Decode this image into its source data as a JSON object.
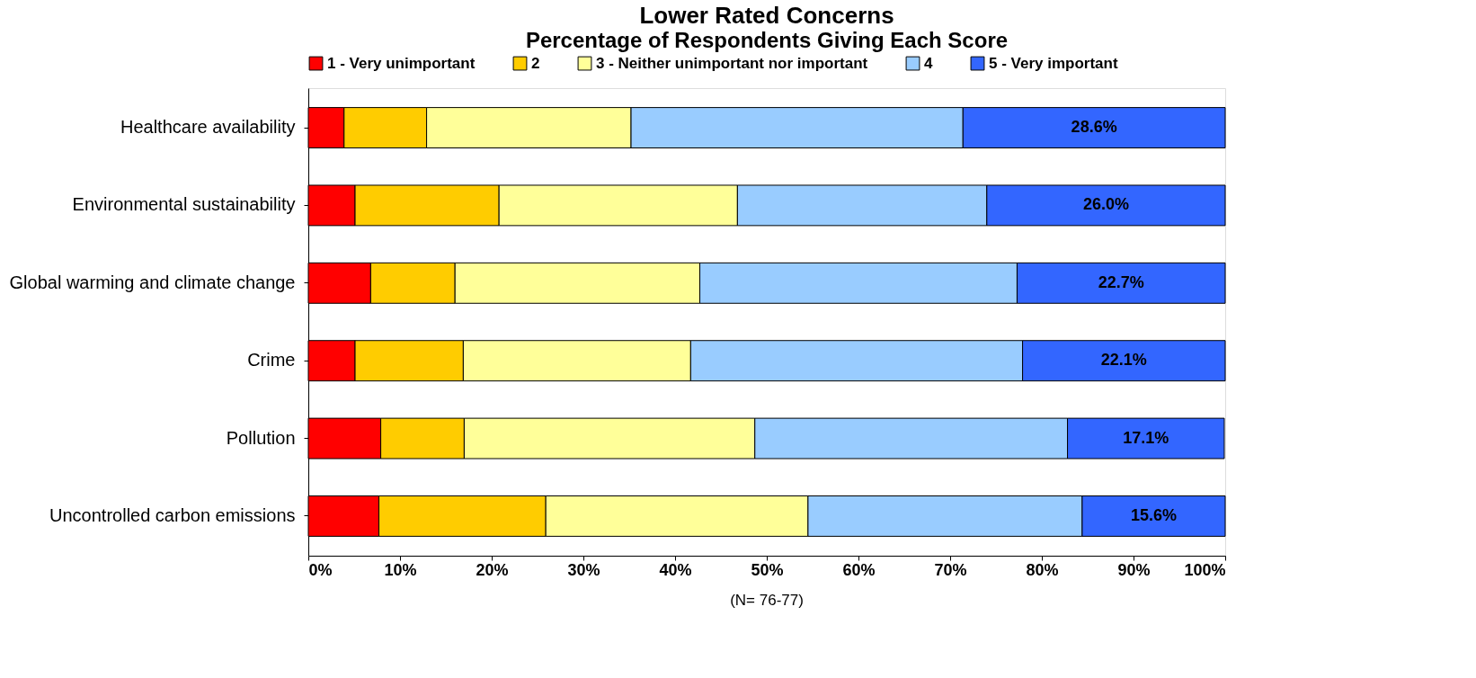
{
  "chart_data": {
    "type": "bar",
    "orientation": "horizontal",
    "stacked": true,
    "title": "Lower Rated Concerns",
    "subtitle": "Percentage of Respondents Giving Each Score",
    "categories": [
      "Healthcare availability",
      "Environmental sustainability",
      "Global warming and climate change",
      "Crime",
      "Pollution",
      "Uncontrolled carbon emissions"
    ],
    "series": [
      {
        "name": "1 - Very unimportant",
        "color": "#ff0000",
        "values": [
          3.9,
          5.1,
          6.8,
          5.1,
          7.9,
          7.7
        ]
      },
      {
        "name": "2",
        "color": "#ffcc00",
        "values": [
          9.0,
          15.7,
          9.2,
          11.8,
          9.1,
          18.2
        ]
      },
      {
        "name": "3 - Neither unimportant nor important",
        "color": "#ffff99",
        "values": [
          22.3,
          26.0,
          26.7,
          24.8,
          31.7,
          28.6
        ]
      },
      {
        "name": "4",
        "color": "#99ccff",
        "values": [
          36.2,
          27.2,
          34.6,
          36.2,
          34.1,
          29.9
        ]
      },
      {
        "name": "5 - Very important",
        "color": "#3366ff",
        "values": [
          28.6,
          26.0,
          22.7,
          22.1,
          17.1,
          15.6
        ],
        "value_labels": [
          "28.6%",
          "26.0%",
          "22.7%",
          "22.1%",
          "17.1%",
          "15.6%"
        ]
      }
    ],
    "xlim": [
      0,
      100
    ],
    "xticks": [
      {
        "value": 0,
        "label": "0%"
      },
      {
        "value": 10,
        "label": "10%"
      },
      {
        "value": 20,
        "label": "20%"
      },
      {
        "value": 30,
        "label": "30%"
      },
      {
        "value": 40,
        "label": "40%"
      },
      {
        "value": 50,
        "label": "50%"
      },
      {
        "value": 60,
        "label": "60%"
      },
      {
        "value": 70,
        "label": "70%"
      },
      {
        "value": 80,
        "label": "80%"
      },
      {
        "value": 90,
        "label": "90%"
      },
      {
        "value": 100,
        "label": "100%"
      }
    ],
    "annotations": [
      "(N= 76-77)"
    ],
    "legend": "top"
  }
}
